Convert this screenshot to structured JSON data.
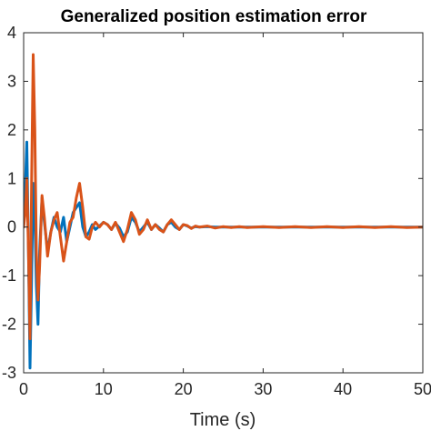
{
  "chart_data": {
    "type": "line",
    "title": "Generalized position estimation error",
    "xlabel": "Time (s)",
    "ylabel": "",
    "xlim": [
      0,
      50
    ],
    "ylim": [
      -3,
      4
    ],
    "xticks": [
      0,
      10,
      20,
      30,
      40,
      50
    ],
    "yticks": [
      -3,
      -2,
      -1,
      0,
      1,
      2,
      3,
      4
    ],
    "xtick_labels": [
      "0",
      "10",
      "20",
      "30",
      "40",
      "50"
    ],
    "ytick_labels": [
      "-3",
      "-2",
      "-1",
      "0",
      "1",
      "2",
      "3",
      "4"
    ],
    "grid": false,
    "legend": "none",
    "series": [
      {
        "color": "#0072BD",
        "x": [
          0,
          0.2,
          0.4,
          0.6,
          0.8,
          1.0,
          1.2,
          1.4,
          1.6,
          1.8,
          2.0,
          2.3,
          2.6,
          3.0,
          3.4,
          3.8,
          4.2,
          4.6,
          5.0,
          5.4,
          5.8,
          6.2,
          6.6,
          7.0,
          7.4,
          7.8,
          8.2,
          8.6,
          9.0,
          9.5,
          10.0,
          10.5,
          11.0,
          11.5,
          12.0,
          12.5,
          13.0,
          13.5,
          14.0,
          14.5,
          15.0,
          15.5,
          16.0,
          16.5,
          17.0,
          17.5,
          18.0,
          18.5,
          19.0,
          19.5,
          20.0,
          20.5,
          21.0,
          21.5,
          22.0,
          23.0,
          24.0,
          25.0,
          26.0,
          27.0,
          28.0,
          30.0,
          32.0,
          34.0,
          36.0,
          38.0,
          40.0,
          42.0,
          44.0,
          46.0,
          48.0,
          50.0
        ],
        "y": [
          0,
          0.8,
          1.75,
          -0.5,
          -2.9,
          -1.0,
          0.9,
          0.2,
          -1.2,
          -2.0,
          -0.5,
          0.6,
          0.1,
          -0.5,
          -0.1,
          0.2,
          0.0,
          -0.1,
          0.2,
          -0.3,
          0.0,
          0.3,
          0.4,
          0.5,
          0.0,
          -0.2,
          -0.1,
          0.05,
          -0.05,
          0.02,
          0.1,
          0.05,
          -0.05,
          0.08,
          -0.02,
          -0.2,
          -0.1,
          0.2,
          0.1,
          -0.1,
          0.0,
          0.1,
          -0.05,
          0.05,
          -0.02,
          -0.1,
          0.05,
          0.1,
          0.0,
          -0.05,
          0.05,
          0.02,
          -0.02,
          0.01,
          0.0,
          0.01,
          0.0,
          0.0,
          0.0,
          0.0,
          0.0,
          0.0,
          0.0,
          0.0,
          0.0,
          0.0,
          0.0,
          0.0,
          0.0,
          0.0,
          0.0,
          0.0
        ]
      },
      {
        "color": "#D95319",
        "x": [
          0,
          0.2,
          0.4,
          0.6,
          0.8,
          1.0,
          1.2,
          1.4,
          1.6,
          1.8,
          2.0,
          2.3,
          2.6,
          3.0,
          3.4,
          3.8,
          4.2,
          4.6,
          5.0,
          5.4,
          5.8,
          6.2,
          6.6,
          7.0,
          7.4,
          7.8,
          8.2,
          8.6,
          9.0,
          9.5,
          10.0,
          10.5,
          11.0,
          11.5,
          12.0,
          12.5,
          13.0,
          13.5,
          14.0,
          14.5,
          15.0,
          15.5,
          16.0,
          16.5,
          17.0,
          17.5,
          18.0,
          18.5,
          19.0,
          19.5,
          20.0,
          20.5,
          21.0,
          21.5,
          22.0,
          23.0,
          24.0,
          25.0,
          26.0,
          27.0,
          28.0,
          30.0,
          32.0,
          34.0,
          36.0,
          38.0,
          40.0,
          42.0,
          44.0,
          46.0,
          48.0,
          50.0
        ],
        "y": [
          0,
          0.3,
          1.0,
          -0.5,
          -2.3,
          1.0,
          3.55,
          2.0,
          -0.5,
          -1.5,
          -0.8,
          0.65,
          0.2,
          -0.6,
          -0.1,
          0.15,
          0.3,
          -0.2,
          -0.7,
          -0.3,
          0.1,
          0.2,
          0.6,
          0.9,
          0.4,
          -0.2,
          -0.25,
          0.0,
          0.1,
          0.0,
          0.1,
          0.05,
          -0.05,
          0.1,
          -0.1,
          -0.3,
          -0.05,
          0.3,
          0.15,
          -0.15,
          -0.05,
          0.15,
          -0.05,
          0.05,
          -0.05,
          -0.1,
          0.05,
          0.15,
          0.05,
          -0.05,
          0.05,
          0.03,
          -0.03,
          0.02,
          0.0,
          0.02,
          -0.02,
          0.01,
          -0.01,
          0.01,
          -0.01,
          0.01,
          -0.01,
          0.01,
          -0.01,
          0.01,
          -0.01,
          0.01,
          -0.01,
          0.01,
          -0.01,
          0.0
        ]
      }
    ]
  }
}
